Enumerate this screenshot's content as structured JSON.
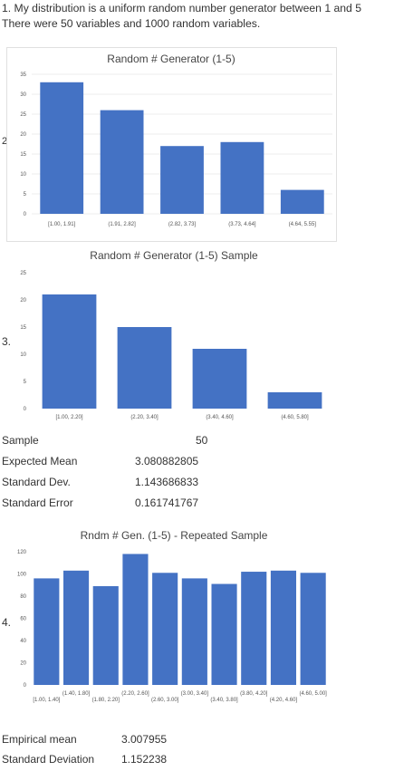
{
  "intro": {
    "line1": "1. My distribution is a uniform random number generator between 1 and 5",
    "line2": "There were 50 variables and 1000 random variables."
  },
  "markers": {
    "m2": "2.",
    "m3": "3.",
    "m4": "4."
  },
  "stats": {
    "sample_label": "Sample",
    "sample_value": "50",
    "mean_label": "Expected Mean",
    "mean_value": "3.080882805",
    "sd_label": "Standard Dev.",
    "sd_value": "1.143686833",
    "se_label": "Standard Error",
    "se_value": "0.161741767"
  },
  "footer": {
    "emp_mean_label": "Empirical mean",
    "emp_mean_value": "3.007955",
    "std_label": "Standard Deviation",
    "std_value": "1.152238"
  },
  "colors": {
    "bar": "#4472C4",
    "grid": "#d9d9d9"
  },
  "chart_data": [
    {
      "type": "bar",
      "title": "Random # Generator (1-5)",
      "categories": [
        "[1.00, 1.91]",
        "(1.91, 2.82]",
        "(2.82, 3.73]",
        "(3.73, 4.64]",
        "(4.64, 5.55]"
      ],
      "values": [
        33,
        26,
        17,
        18,
        6
      ],
      "ylim": [
        0,
        35
      ],
      "yticks": [
        0,
        5,
        10,
        15,
        20,
        25,
        30,
        35
      ],
      "grid": true
    },
    {
      "type": "bar",
      "title": "Random # Generator (1-5) Sample",
      "categories": [
        "[1.00, 2.20]",
        "(2.20, 3.40]",
        "(3.40, 4.60]",
        "(4.60, 5.80]"
      ],
      "values": [
        21,
        15,
        11,
        3
      ],
      "ylim": [
        0,
        25
      ],
      "yticks": [
        0,
        5,
        10,
        15,
        20,
        25
      ],
      "grid": false
    },
    {
      "type": "bar",
      "title": "Rndm # Gen. (1-5) - Repeated Sample",
      "categories": [
        "[1.00, 1.40]",
        "(1.40, 1.80]",
        "(1.80, 2.20]",
        "(2.20, 2.60]",
        "(2.60, 3.00]",
        "(3.00, 3.40]",
        "(3.40, 3.80]",
        "(3.80, 4.20]",
        "(4.20, 4.60]",
        "(4.60, 5.00]"
      ],
      "values": [
        96,
        103,
        89,
        118,
        101,
        96,
        91,
        102,
        103,
        101
      ],
      "ylim": [
        0,
        120
      ],
      "yticks": [
        0,
        20,
        40,
        60,
        80,
        100,
        120
      ],
      "grid": false
    }
  ]
}
